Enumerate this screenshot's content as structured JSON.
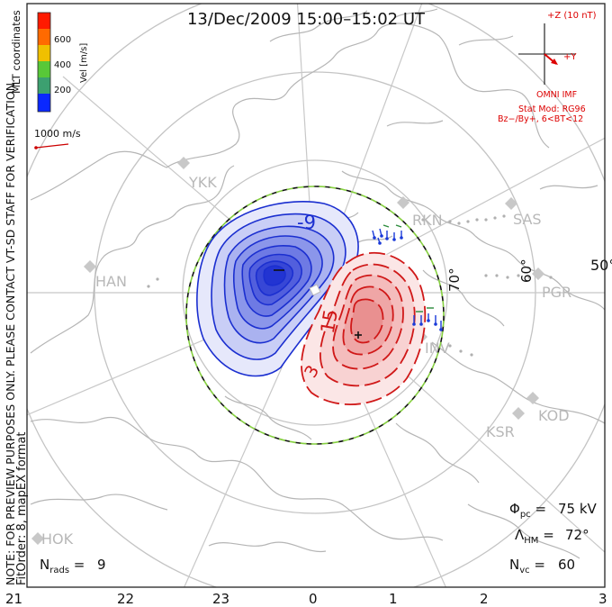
{
  "title": "13/Dec/2009 15:00–15:02 UT",
  "side_note": "NOTE: FOR PREVIEW PURPOSES ONLY. PLEASE CONTACT VT-SD STAFF FOR VERIFICATION.",
  "fit_note": "FitOrder: 8, mapEX format",
  "colorbar": {
    "title": "Vel [m/s]",
    "coords": "MLT coordinates",
    "ticks": [
      "600",
      "400",
      "200"
    ],
    "colors": [
      "#ff1a00",
      "#ff6a00",
      "#f0c000",
      "#58c838",
      "#3ca070",
      "#0a28ff"
    ]
  },
  "vector_scale": "1000 m/s",
  "imf": {
    "z_label": "+Z (10 nT)",
    "y_label": "+Y",
    "source": "OMNI IMF",
    "model": "Stat Mod: RG96",
    "condition": "Bz−/By+, 6<BT<12"
  },
  "stations": [
    "YKK",
    "RKN",
    "SAS",
    "HAN",
    "PGR",
    "INV",
    "KOD",
    "KSR",
    "HOK"
  ],
  "latitude_labels": [
    "70°",
    "60°",
    "50°"
  ],
  "contour_labels": [
    "-9",
    "15",
    "3"
  ],
  "stats": {
    "phi_pc": "75 kV",
    "lambda_hm": "72°",
    "n_vc": "60",
    "n_rads": "9"
  },
  "mlt_axis": [
    "21",
    "22",
    "23",
    "0",
    "1",
    "2",
    "3"
  ],
  "colors": {
    "negative_cell": "#1b2fd0",
    "positive_cell": "#d01818",
    "grid": "#bdbdbd",
    "coast": "#b8b8b8",
    "imf_text": "#dd0000"
  }
}
